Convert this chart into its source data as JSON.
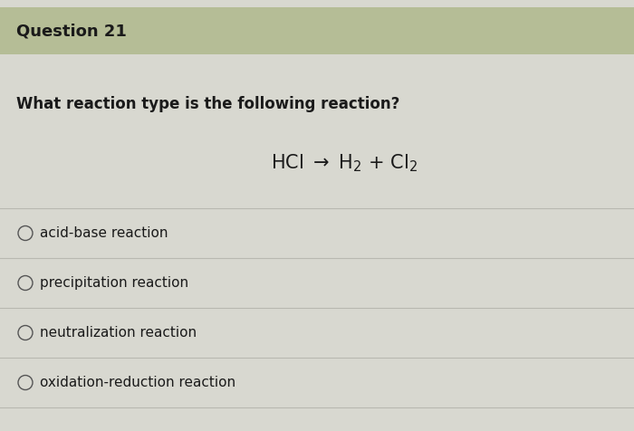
{
  "title": "Question 21",
  "title_bg_color": "#b5bd96",
  "top_strip_color": "#d8d8d0",
  "bg_color": "#d0cfc8",
  "question_text": "What reaction type is the following reaction?",
  "options": [
    "acid-base reaction",
    "precipitation reaction",
    "neutralization reaction",
    "oxidation-reduction reaction"
  ],
  "divider_color": "#b8b8b0",
  "text_color": "#1a1a1a",
  "circle_color": "#555555",
  "question_fontsize": 12,
  "reaction_fontsize": 15,
  "option_fontsize": 11,
  "title_fontsize": 13,
  "fig_width": 7.0,
  "fig_height": 4.76,
  "dpi": 100
}
